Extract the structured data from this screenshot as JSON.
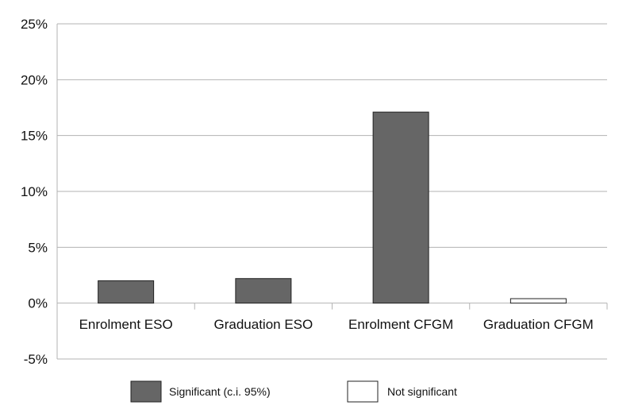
{
  "chart_data": {
    "type": "bar",
    "categories": [
      "Enrolment ESO",
      "Graduation ESO",
      "Enrolment CFGM",
      "Graduation CFGM"
    ],
    "values": [
      2.0,
      2.2,
      17.1,
      0.4
    ],
    "significance": [
      "Significant (c.i. 95%)",
      "Significant (c.i. 95%)",
      "Significant (c.i. 95%)",
      "Not significant"
    ],
    "ylim": [
      -5,
      25
    ],
    "yticks": [
      25,
      20,
      15,
      10,
      5,
      0,
      -5
    ],
    "ytick_labels": [
      "25%",
      "20%",
      "15%",
      "10%",
      "5%",
      "0%",
      "-5%"
    ],
    "grid": true,
    "legend": {
      "placement": "bottom",
      "entries": [
        {
          "label": "Significant (c.i. 95%)",
          "color": "#666666"
        },
        {
          "label": "Not significant",
          "color": "#ffffff"
        }
      ]
    },
    "colors": {
      "significant": "#666666",
      "not_significant": "#ffffff",
      "grid": "#b3b3b3",
      "bar_stroke": "#222222"
    }
  }
}
